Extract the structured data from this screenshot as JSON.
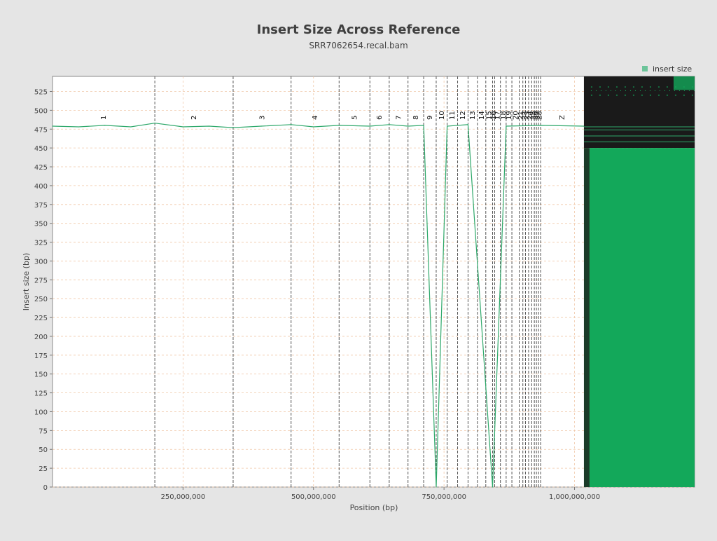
{
  "chart_data": {
    "type": "line",
    "title": "Insert Size Across Reference",
    "subtitle": "SRR7062654.recal.bam",
    "xlabel": "Position (bp)",
    "ylabel": "Insert size (bp)",
    "xlim": [
      0,
      1230000000
    ],
    "ylim": [
      0,
      545
    ],
    "grid": true,
    "legend_position": "top-right",
    "x_ticks": [
      {
        "value": 250000000,
        "label": "250,000,000"
      },
      {
        "value": 500000000,
        "label": "500,000,000"
      },
      {
        "value": 750000000,
        "label": "750,000,000"
      },
      {
        "value": 1000000000,
        "label": "1,000,000,000"
      }
    ],
    "y_ticks": [
      0,
      25,
      50,
      75,
      100,
      125,
      150,
      175,
      200,
      225,
      250,
      275,
      300,
      325,
      350,
      375,
      400,
      425,
      450,
      475,
      500,
      525
    ],
    "chromosomes": [
      {
        "name": "1",
        "start": 0,
        "end": 196000000
      },
      {
        "name": "2",
        "start": 196000000,
        "end": 346000000
      },
      {
        "name": "3",
        "start": 346000000,
        "end": 457000000
      },
      {
        "name": "4",
        "start": 457000000,
        "end": 549000000
      },
      {
        "name": "5",
        "start": 549000000,
        "end": 608000000
      },
      {
        "name": "6",
        "start": 608000000,
        "end": 645000000
      },
      {
        "name": "7",
        "start": 645000000,
        "end": 681000000
      },
      {
        "name": "8",
        "start": 681000000,
        "end": 711000000
      },
      {
        "name": "9",
        "start": 711000000,
        "end": 735000000
      },
      {
        "name": "10",
        "start": 735000000,
        "end": 756000000
      },
      {
        "name": "11",
        "start": 756000000,
        "end": 776000000
      },
      {
        "name": "12",
        "start": 776000000,
        "end": 796000000
      },
      {
        "name": "13",
        "start": 796000000,
        "end": 814000000
      },
      {
        "name": "14",
        "start": 814000000,
        "end": 830000000
      },
      {
        "name": "15",
        "start": 830000000,
        "end": 843000000
      },
      {
        "name": "16",
        "start": 843000000,
        "end": 847000000
      },
      {
        "name": "17",
        "start": 847000000,
        "end": 858000000
      },
      {
        "name": "18",
        "start": 858000000,
        "end": 869000000
      },
      {
        "name": "19",
        "start": 869000000,
        "end": 880000000
      },
      {
        "name": "20",
        "start": 880000000,
        "end": 894000000
      },
      {
        "name": "21",
        "start": 894000000,
        "end": 901000000
      },
      {
        "name": "22",
        "start": 901000000,
        "end": 906000000
      },
      {
        "name": "23",
        "start": 906000000,
        "end": 912000000
      },
      {
        "name": "24",
        "start": 912000000,
        "end": 918000000
      },
      {
        "name": "25",
        "start": 918000000,
        "end": 923000000
      },
      {
        "name": "26",
        "start": 923000000,
        "end": 927000000
      },
      {
        "name": "27",
        "start": 927000000,
        "end": 931000000
      },
      {
        "name": "28",
        "start": 931000000,
        "end": 935000000
      },
      {
        "name": "Z",
        "start": 935000000,
        "end": 1018000000
      }
    ],
    "series": [
      {
        "name": "insert size",
        "color": "#13a85a",
        "baseline_insert_size": 479,
        "points": [
          {
            "x": 0,
            "y": 479
          },
          {
            "x": 50000000,
            "y": 478
          },
          {
            "x": 100000000,
            "y": 480
          },
          {
            "x": 150000000,
            "y": 478
          },
          {
            "x": 196000000,
            "y": 483
          },
          {
            "x": 250000000,
            "y": 478
          },
          {
            "x": 300000000,
            "y": 479
          },
          {
            "x": 346000000,
            "y": 477
          },
          {
            "x": 400000000,
            "y": 479
          },
          {
            "x": 457000000,
            "y": 481
          },
          {
            "x": 500000000,
            "y": 478
          },
          {
            "x": 549000000,
            "y": 480
          },
          {
            "x": 608000000,
            "y": 479
          },
          {
            "x": 645000000,
            "y": 481
          },
          {
            "x": 681000000,
            "y": 479
          },
          {
            "x": 711000000,
            "y": 480
          },
          {
            "x": 735000000,
            "y": 0
          },
          {
            "x": 756000000,
            "y": 479
          },
          {
            "x": 796000000,
            "y": 481
          },
          {
            "x": 843000000,
            "y": 0
          },
          {
            "x": 869000000,
            "y": 479
          },
          {
            "x": 935000000,
            "y": 480
          },
          {
            "x": 1018000000,
            "y": 479
          }
        ],
        "unplaced_region": {
          "start": 1018000000,
          "end": 1230000000,
          "fill_to": 450,
          "max": 545
        }
      }
    ]
  }
}
